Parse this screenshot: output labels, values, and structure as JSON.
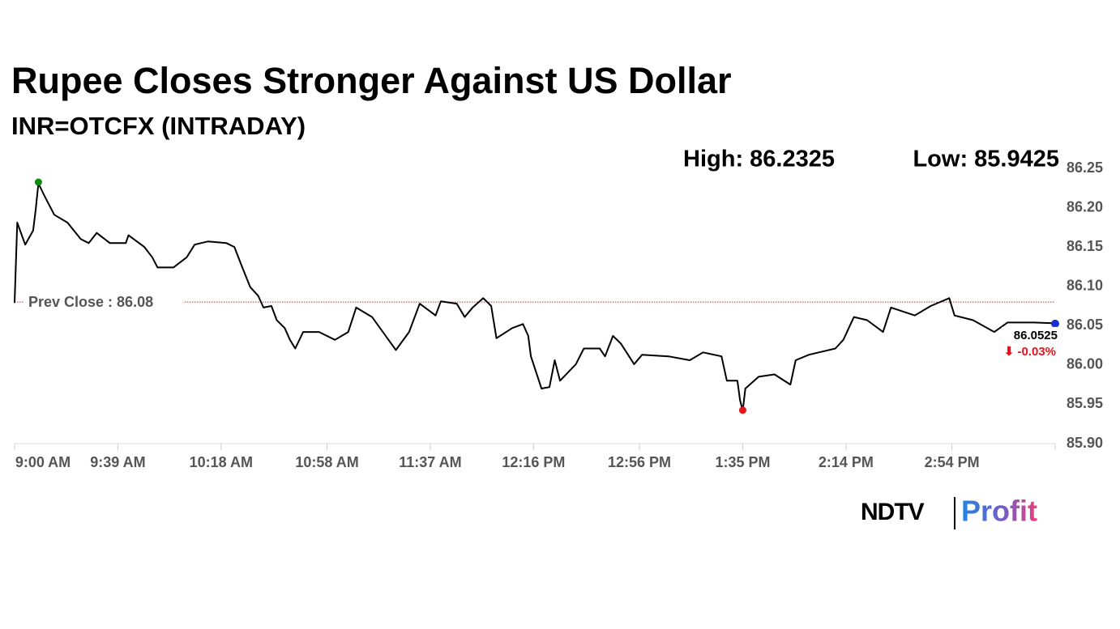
{
  "chart_data": {
    "type": "line",
    "title": "Rupee Closes Stronger Against US Dollar",
    "subtitle": "INR=OTCFX (INTRADAY)",
    "high": {
      "value": 86.2325,
      "label": "High: 86.2325"
    },
    "low": {
      "value": 85.9425,
      "label": "Low: 85.9425"
    },
    "prev_close": {
      "value": 86.08,
      "label": "Prev Close : 86.08"
    },
    "last": {
      "value": 86.0525,
      "label": "86.0525"
    },
    "change": {
      "value": -0.03,
      "label": "⬇ -0.03%"
    },
    "x": [
      540,
      541,
      544,
      547,
      548,
      549,
      551,
      555,
      560,
      565,
      568,
      571,
      576,
      582,
      583,
      589,
      592,
      594,
      600,
      605,
      608,
      613,
      620,
      623,
      626,
      629,
      632,
      634,
      637,
      639,
      642,
      644,
      646,
      649,
      655,
      661,
      666,
      669,
      675,
      678,
      684,
      689,
      693,
      699,
      701,
      707,
      710,
      713,
      717,
      720,
      722,
      728,
      732,
      734,
      735,
      739,
      742,
      744,
      746,
      752,
      755,
      761,
      763,
      766,
      769,
      774,
      777,
      787,
      795,
      800,
      807,
      809,
      813,
      814,
      815,
      816,
      821,
      827,
      833,
      835,
      840,
      850,
      853,
      857,
      862,
      868,
      871,
      880,
      886,
      893,
      895,
      902,
      910,
      915,
      925,
      933
    ],
    "series": [
      {
        "name": "INR=OTCFX",
        "color": "#000000",
        "values": [
          86.079,
          86.181,
          86.153,
          86.171,
          86.198,
          86.231,
          86.217,
          86.191,
          86.181,
          86.16,
          86.155,
          86.168,
          86.155,
          86.155,
          86.165,
          86.15,
          86.137,
          86.124,
          86.124,
          86.137,
          86.153,
          86.157,
          86.155,
          86.15,
          86.124,
          86.099,
          86.088,
          86.073,
          86.075,
          86.057,
          86.047,
          86.032,
          86.021,
          86.042,
          86.042,
          86.032,
          86.042,
          86.073,
          86.061,
          86.047,
          86.019,
          86.042,
          86.078,
          86.063,
          86.081,
          86.078,
          86.061,
          86.073,
          86.085,
          86.075,
          86.034,
          86.047,
          86.052,
          86.037,
          86.011,
          85.97,
          85.972,
          86.006,
          85.98,
          86.001,
          86.021,
          86.021,
          86.011,
          86.037,
          86.027,
          86.001,
          86.013,
          86.011,
          86.006,
          86.016,
          86.011,
          85.98,
          85.98,
          85.955,
          85.942,
          85.97,
          85.985,
          85.988,
          85.975,
          86.006,
          86.013,
          86.021,
          86.032,
          86.061,
          86.057,
          86.042,
          86.073,
          86.063,
          86.075,
          86.085,
          86.063,
          86.057,
          86.042,
          86.054,
          86.054,
          86.053
        ]
      }
    ],
    "xlim": [
      540,
      933
    ],
    "xticks": [
      {
        "value": 540,
        "label": "9:00 AM"
      },
      {
        "value": 579,
        "label": "9:39 AM"
      },
      {
        "value": 618,
        "label": "10:18 AM"
      },
      {
        "value": 658,
        "label": "10:58 AM"
      },
      {
        "value": 697,
        "label": "11:37 AM"
      },
      {
        "value": 736,
        "label": "12:16 PM"
      },
      {
        "value": 776,
        "label": "12:56 PM"
      },
      {
        "value": 815,
        "label": "1:35 PM"
      },
      {
        "value": 854,
        "label": "2:14 PM"
      },
      {
        "value": 894,
        "label": "2:54 PM"
      }
    ],
    "ylim": [
      85.9,
      86.25
    ],
    "yticks": [
      {
        "value": 85.9,
        "label": "85.90"
      },
      85.95,
      {
        "value": 86.0,
        "label": "86.00"
      },
      86.05,
      {
        "value": 86.1,
        "label": "86.10"
      },
      86.15,
      {
        "value": 86.2,
        "label": "86.20"
      },
      86.25
    ],
    "grid": false
  },
  "logo": {
    "brand": "NDTV",
    "product": "Profit"
  }
}
